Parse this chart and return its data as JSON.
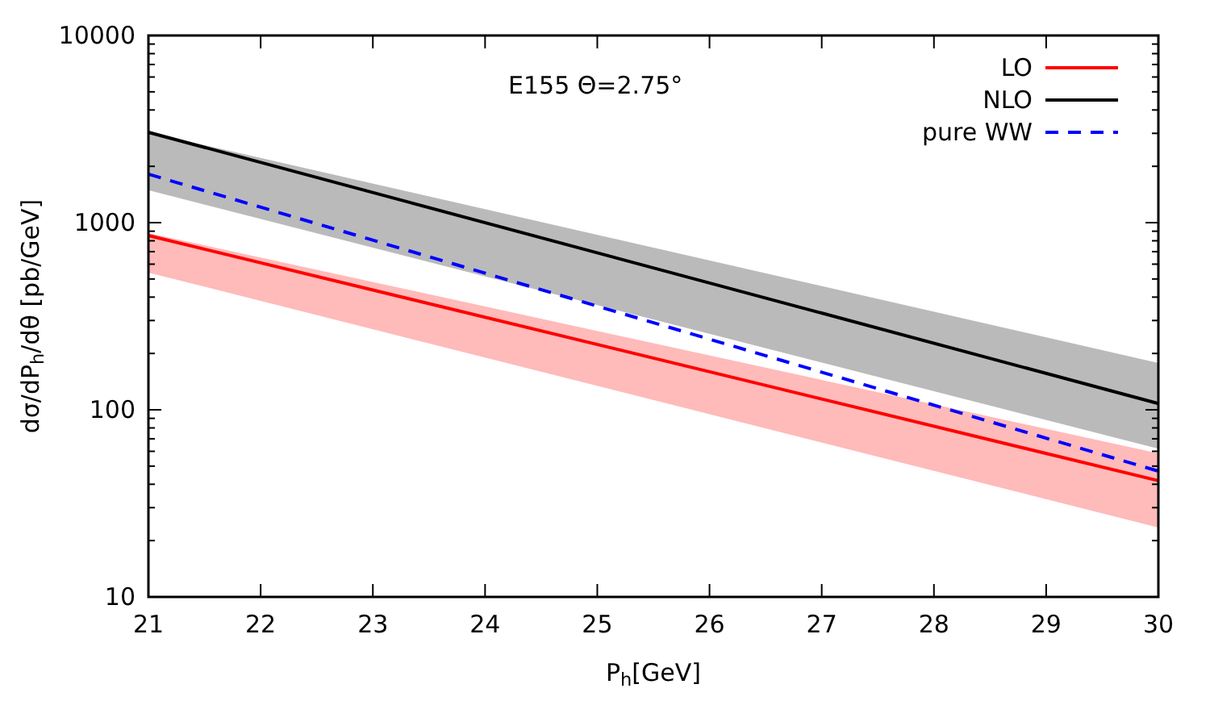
{
  "chart_data": {
    "type": "line",
    "xlabel": "P$_{h}$[GeV]",
    "ylabel": "dσ/dP$_{h}$/dθ [pb/GeV]",
    "annotations": [
      "E155 Θ=2.75°"
    ],
    "x": [
      21,
      30
    ],
    "xlim": [
      21,
      30
    ],
    "xticks": [
      21,
      22,
      23,
      24,
      25,
      26,
      27,
      28,
      29,
      30
    ],
    "log": true,
    "ylim": [
      10,
      10000
    ],
    "yticks": [
      10,
      100,
      1000,
      10000
    ],
    "legend": "top right",
    "grid": false,
    "series": [
      {
        "name": "LO",
        "color": "#ff0000",
        "values": [
          853,
          41.8
        ],
        "lower": [
          541,
          23.5
        ],
        "upper": [
          880,
          58.5
        ]
      },
      {
        "name": "NLO",
        "color": "#000000",
        "values": [
          3040,
          108
        ],
        "lower": [
          1490,
          62
        ],
        "upper": [
          3040,
          178
        ]
      },
      {
        "name": "pure WW",
        "color": "#0000ff",
        "values": [
          1815,
          47
        ],
        "line_style": "dashed"
      }
    ]
  }
}
